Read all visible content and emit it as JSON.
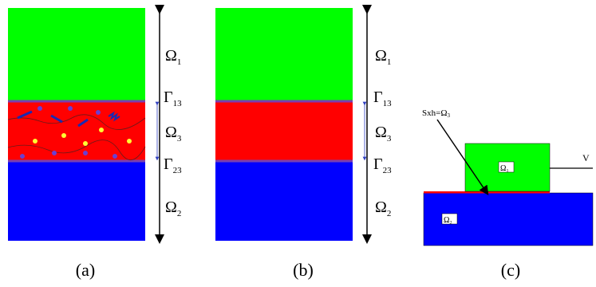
{
  "colors": {
    "top_domain": "#00ff00",
    "bottom_domain": "#0000ff",
    "interphase": "#ff0000",
    "interface_line": "#7a3fb0",
    "particle_purple": "#6b3fd0",
    "particle_yellow": "#ffff33",
    "fiber": "#1a2ab0"
  },
  "panels": {
    "a": {
      "caption": "(a)",
      "omega1": {
        "sym": "Ω",
        "sub": "1"
      },
      "gamma13": {
        "sym": "Γ",
        "sub": "13"
      },
      "omega3": {
        "sym": "Ω",
        "sub": "3"
      },
      "gamma23": {
        "sym": "Γ",
        "sub": "23"
      },
      "omega2": {
        "sym": "Ω",
        "sub": "2"
      }
    },
    "b": {
      "caption": "(b)",
      "omega1": {
        "sym": "Ω",
        "sub": "1"
      },
      "gamma13": {
        "sym": "Γ",
        "sub": "13"
      },
      "omega3": {
        "sym": "Ω",
        "sub": "3"
      },
      "gamma23": {
        "sym": "Γ",
        "sub": "23"
      },
      "omega2": {
        "sym": "Ω",
        "sub": "2"
      }
    },
    "c": {
      "caption": "(c)",
      "sxh_text": "Sxh=",
      "sxh_sym": "Ω",
      "sxh_sub": "3",
      "velocity_label": "V",
      "block_top_label": "Ω",
      "block_top_sub": "1",
      "block_bottom_label": "Ω",
      "block_bottom_sub": "2"
    }
  }
}
